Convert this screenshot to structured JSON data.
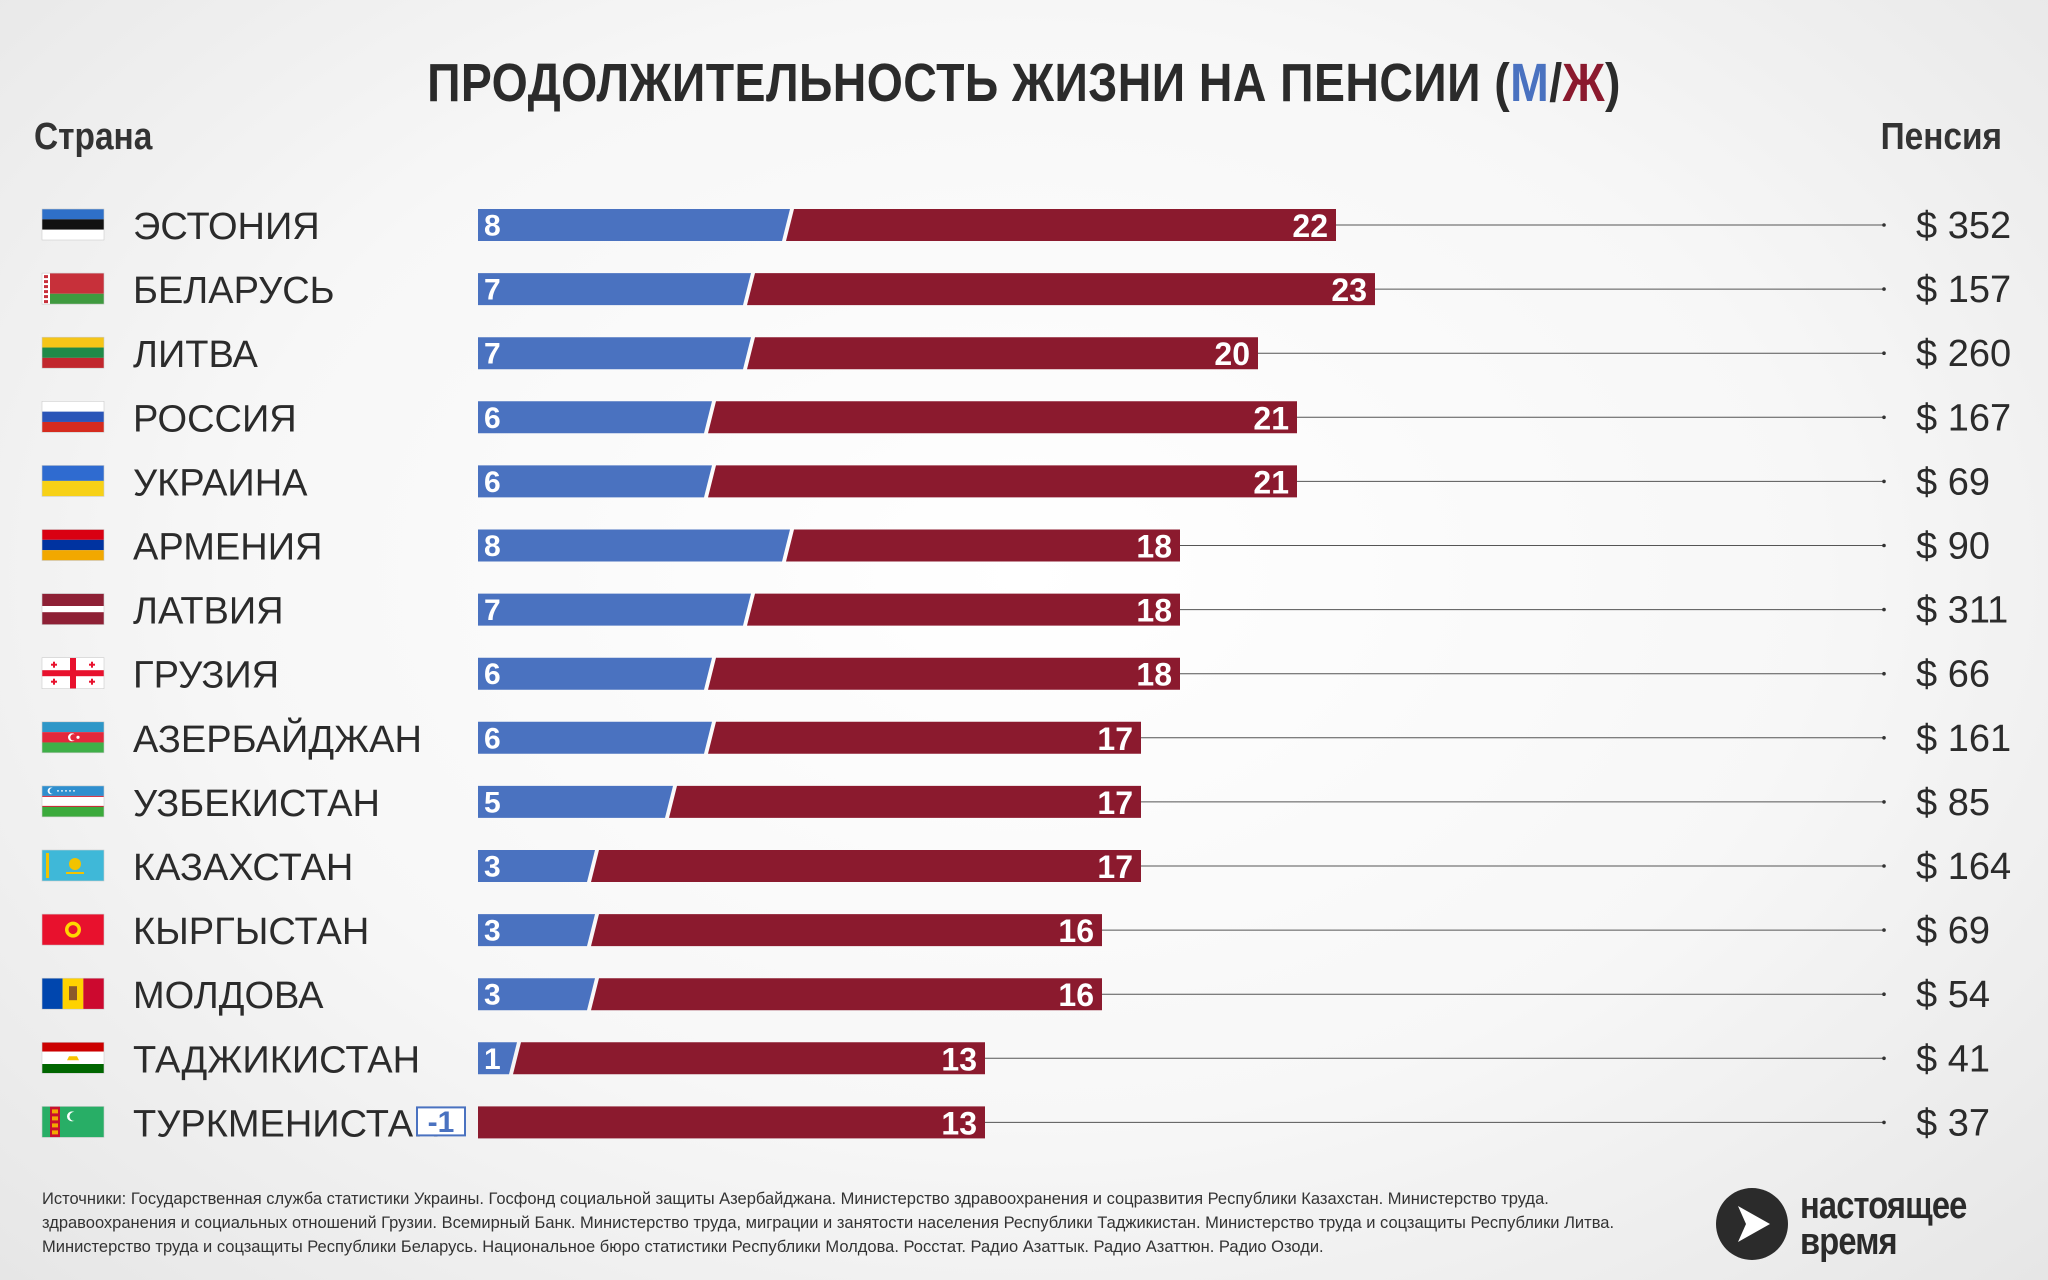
{
  "title": {
    "main": "ПРОДОЛЖИТЕЛЬНОСТЬ ЖИЗНИ НА ПЕНСИИ (",
    "m": "М",
    "slash": "/",
    "w": "Ж",
    "close": ")"
  },
  "headers": {
    "country": "Страна",
    "pension": "Пенсия"
  },
  "colors": {
    "men": "#4a72c0",
    "women": "#8b1a2e",
    "text": "#2b2b2b"
  },
  "chart_data": {
    "type": "bar",
    "orientation": "horizontal",
    "stacked": true,
    "title": "ПРОДОЛЖИТЕЛЬНОСТЬ ЖИЗНИ НА ПЕНСИИ (М/Ж)",
    "categories": [
      "ЭСТОНИЯ",
      "БЕЛАРУСЬ",
      "ЛИТВА",
      "РОССИЯ",
      "УКРАИНА",
      "АРМЕНИЯ",
      "ЛАТВИЯ",
      "ГРУЗИЯ",
      "АЗЕРБАЙДЖАН",
      "УЗБЕКИСТАН",
      "КАЗАХСТАН",
      "КЫРГЫСТАН",
      "МОЛДОВА",
      "ТАДЖИКИСТАН",
      "ТУРКМЕНИСТАН"
    ],
    "series": [
      {
        "name": "М",
        "values": [
          8,
          7,
          7,
          6,
          6,
          8,
          7,
          6,
          6,
          5,
          3,
          3,
          3,
          1,
          -1
        ]
      },
      {
        "name": "Ж",
        "values": [
          22,
          23,
          20,
          21,
          21,
          18,
          18,
          18,
          17,
          17,
          17,
          16,
          16,
          13,
          13
        ]
      }
    ],
    "pension_labels": [
      "$ 352",
      "$ 157",
      "$ 260",
      "$ 167",
      "$ 69",
      "$ 90",
      "$ 311",
      "$ 66",
      "$ 161",
      "$ 85",
      "$ 164",
      "$ 69",
      "$ 54",
      "$ 41",
      "$ 37"
    ],
    "flags": [
      "estonia",
      "belarus",
      "lithuania",
      "russia",
      "ukraine",
      "armenia",
      "latvia",
      "georgia",
      "azerbaijan",
      "uzbekistan",
      "kazakhstan",
      "kyrgyzstan",
      "moldova",
      "tajikistan",
      "turkmenistan"
    ],
    "xlabel": "Страна",
    "ylabel": "Пенсия"
  },
  "sources": "Источники: Государственная служба статистики Украины. Госфонд социальной защиты Азербайджана. Министерство здравоохранения и соцразвития Республики Казахстан. Министерство труда. здравоохранения и социальных отношений Грузии. Всемирный Банк. Министерство труда, миграции и занятости населения Республики Таджикистан. Министерство труда и соцзащиты Республики Литва. Министерство труда и соцзащиты Республики Беларусь. Национальное бюро статистики Республики Молдова. Росстат. Радио Азаттык. Радио Азаттюн. Радио Озоди.",
  "logo": {
    "line1": "настоящее",
    "line2": "время"
  }
}
